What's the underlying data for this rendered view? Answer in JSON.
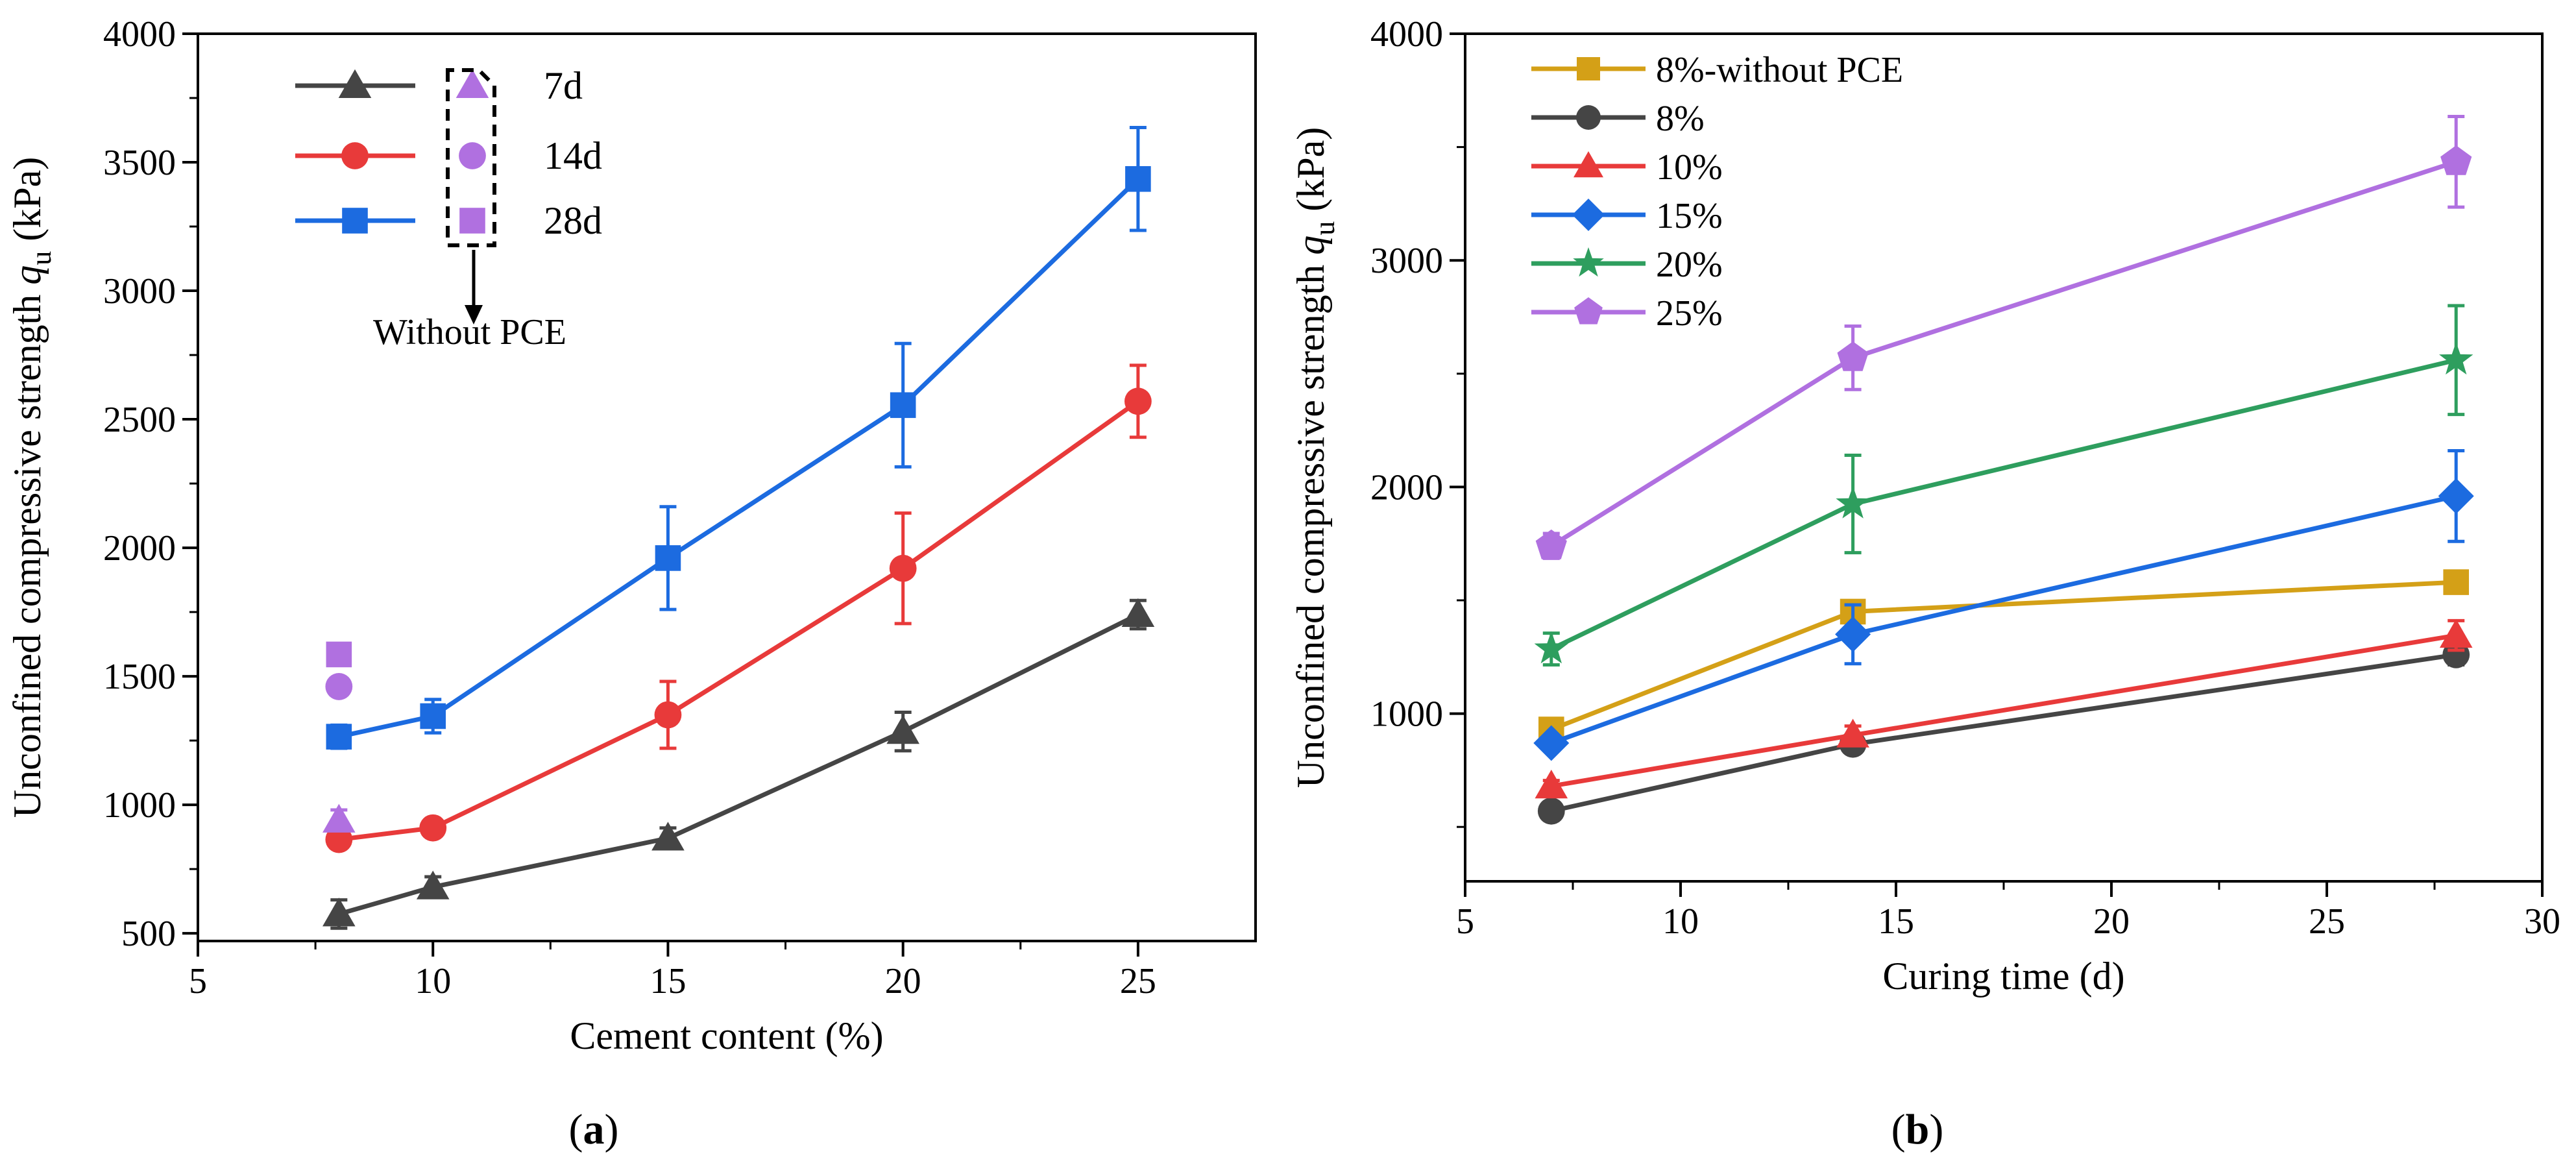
{
  "chart_data": [
    {
      "type": "line",
      "panel_label": "a",
      "xlabel": "Cement content (%)",
      "ylabel_main": "Unconfined compressive strength ",
      "ylabel_symbol": "q",
      "ylabel_sub": "u",
      "ylabel_unit": " (kPa)",
      "xlim": [
        5,
        27.5
      ],
      "ylim": [
        470,
        4000
      ],
      "xticks": [
        5,
        10,
        15,
        20,
        25
      ],
      "yticks": [
        500,
        1000,
        1500,
        2000,
        2500,
        3000,
        3500,
        4000
      ],
      "series": [
        {
          "name": "7d",
          "color": "#454545",
          "marker": "triangle",
          "x": [
            8,
            10,
            15,
            20,
            25
          ],
          "values": [
            575,
            680,
            870,
            1285,
            1740
          ],
          "errors": [
            55,
            40,
            40,
            75,
            55
          ]
        },
        {
          "name": "14d",
          "color": "#e83a3a",
          "marker": "circle",
          "x": [
            8,
            10,
            15,
            20,
            25
          ],
          "values": [
            865,
            910,
            1350,
            1920,
            2570
          ],
          "errors": [
            30,
            30,
            130,
            215,
            140
          ]
        },
        {
          "name": "28d",
          "color": "#1c6be0",
          "marker": "square",
          "x": [
            8,
            10,
            15,
            20,
            25
          ],
          "values": [
            1265,
            1345,
            1960,
            2555,
            3435
          ],
          "errors": [
            45,
            65,
            200,
            240,
            200
          ]
        }
      ],
      "without_pce": [
        {
          "name": "7d",
          "marker": "triangle",
          "color": "#b070e0",
          "x": 8,
          "value": 940,
          "error": 40
        },
        {
          "name": "14d",
          "marker": "circle",
          "color": "#b070e0",
          "x": 8,
          "value": 1460,
          "error": 30
        },
        {
          "name": "28d",
          "marker": "square",
          "color": "#b070e0",
          "x": 8,
          "value": 1585,
          "error": 40
        }
      ],
      "annotation": "Without PCE"
    },
    {
      "type": "line",
      "panel_label": "b",
      "xlabel": "Curing time (d)",
      "ylabel_main": "Unconfined compressive strength ",
      "ylabel_symbol": "q",
      "ylabel_sub": "u",
      "ylabel_unit": " (kPa)",
      "xlim": [
        5,
        30
      ],
      "ylim": [
        260,
        4000
      ],
      "xticks": [
        5,
        10,
        15,
        20,
        25,
        30
      ],
      "yticks": [
        1000,
        2000,
        3000,
        4000
      ],
      "series": [
        {
          "name": "8%-without PCE",
          "color": "#d4a017",
          "marker": "square",
          "x": [
            7,
            14,
            28
          ],
          "values": [
            930,
            1450,
            1580
          ],
          "errors": [
            20,
            30,
            35
          ]
        },
        {
          "name": "8%",
          "color": "#454545",
          "marker": "circle",
          "x": [
            7,
            14,
            28
          ],
          "values": [
            570,
            865,
            1260
          ],
          "errors": [
            40,
            30,
            45
          ]
        },
        {
          "name": "10%",
          "color": "#e83a3a",
          "marker": "triangle",
          "x": [
            7,
            14,
            28
          ],
          "values": [
            680,
            905,
            1345
          ],
          "errors": [
            25,
            40,
            65
          ]
        },
        {
          "name": "15%",
          "color": "#1c6be0",
          "marker": "diamond",
          "x": [
            7,
            14,
            28
          ],
          "values": [
            870,
            1350,
            1960
          ],
          "errors": [
            20,
            130,
            200
          ]
        },
        {
          "name": "20%",
          "color": "#2e9e5e",
          "marker": "star",
          "x": [
            7,
            14,
            28
          ],
          "values": [
            1285,
            1925,
            2560
          ],
          "errors": [
            70,
            215,
            240
          ]
        },
        {
          "name": "25%",
          "color": "#b070e0",
          "marker": "pentagon",
          "x": [
            7,
            14,
            28
          ],
          "values": [
            1740,
            2570,
            3435
          ],
          "errors": [
            55,
            140,
            200
          ]
        }
      ]
    }
  ]
}
